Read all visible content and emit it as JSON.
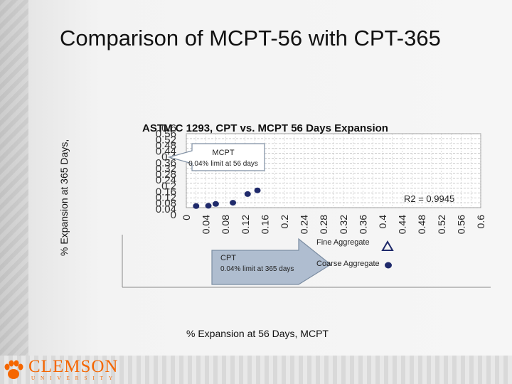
{
  "slide": {
    "title": "Comparison of MCPT-56 with CPT-365"
  },
  "chart_data": {
    "type": "scatter",
    "title": "ASTM C 1293, CPT vs. MCPT 56 Days Expansion",
    "xlabel": "% Expansion at 56 Days, MCPT",
    "ylabel": "% Expansion at 365 Days,",
    "xlim": [
      0,
      0.6
    ],
    "ylim": [
      0,
      0.6
    ],
    "x_ticks": [
      "0",
      "0.04",
      "0.08",
      "0.12",
      "0.16",
      "0.2",
      "0.24",
      "0.28",
      "0.32",
      "0.36",
      "0.4",
      "0.44",
      "0.48",
      "0.52",
      "0.56",
      "0.6"
    ],
    "y_ticks": [
      "0",
      "0.04",
      "0.08",
      "0.12",
      "0.16",
      "0.2",
      "0.24",
      "0.28",
      "0.32",
      "0.36",
      "0.4",
      "0.44",
      "0.48",
      "0.52",
      "0.56",
      "0.6"
    ],
    "series": [
      {
        "name": "Fine Aggregate",
        "marker": "triangle",
        "color": "#1f2a6b",
        "points": []
      },
      {
        "name": "Coarse Aggregate",
        "marker": "circle",
        "color": "#1f2a6b",
        "points": [
          [
            0.02,
            0.013
          ],
          [
            0.045,
            0.015
          ],
          [
            0.06,
            0.03
          ],
          [
            0.095,
            0.04
          ],
          [
            0.125,
            0.11
          ],
          [
            0.145,
            0.14
          ]
        ]
      }
    ],
    "annotations": {
      "r_squared": "R2 = 0.9945",
      "mcpt": {
        "title": "MCPT",
        "text": "0.04% limit at 56 days"
      },
      "cpt": {
        "title": "CPT",
        "text": "0.04% limit at 365 days"
      }
    },
    "grid": true,
    "legend": "bottom-right"
  },
  "logo": {
    "name": "CLEMSON",
    "sub": "UNIVERSITY"
  },
  "colors": {
    "marker": "#1f2a6b",
    "arrow": "#9fb0c4",
    "logo": "#f56600"
  }
}
